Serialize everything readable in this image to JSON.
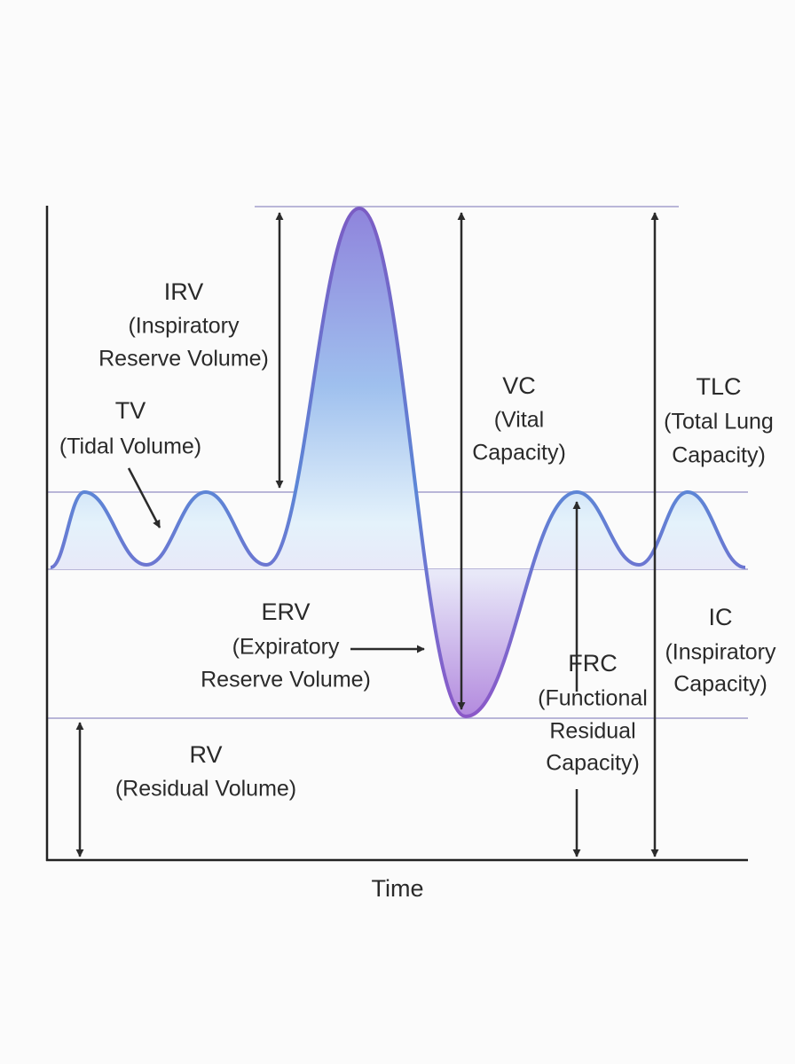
{
  "labels": [
    {
      "abbr": "IRV",
      "lines": [
        "(Inspiratory",
        "Reserve Volume)"
      ]
    },
    {
      "abbr": "TV",
      "lines": [
        "(Tidal Volume)"
      ]
    },
    {
      "abbr": "VC",
      "lines": [
        "(Vital",
        "Capacity)"
      ]
    },
    {
      "abbr": "TLC",
      "lines": [
        "(Total Lung",
        "Capacity)"
      ]
    },
    {
      "abbr": "ERV",
      "lines": [
        "(Expiratory",
        "Reserve Volume)"
      ]
    },
    {
      "abbr": "FRC",
      "lines": [
        "(Functional",
        "Residual",
        "Capacity)"
      ]
    },
    {
      "abbr": "IC",
      "lines": [
        "(Inspiratory",
        "Capacity)"
      ]
    },
    {
      "abbr": "RV",
      "lines": [
        "(Residual Volume)"
      ]
    }
  ],
  "x_axis_label": "Time"
}
